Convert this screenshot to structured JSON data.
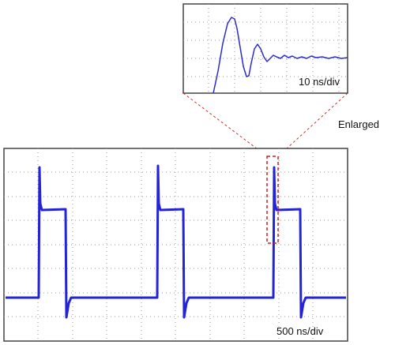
{
  "inset": {
    "scale_label": "10 ns/div"
  },
  "callout": {
    "label": "Enlarged"
  },
  "main": {
    "scale_label": "500 ns/div"
  }
}
